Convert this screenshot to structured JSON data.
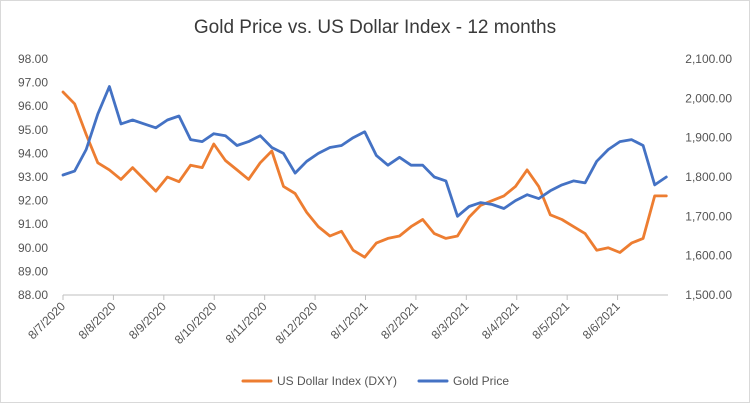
{
  "chart_data": {
    "type": "line",
    "title": "Gold Price vs. US Dollar Index - 12 months",
    "xlabel": "",
    "ylabel": "",
    "grid": false,
    "legend_position": "bottom",
    "x_tick_labels": [
      "8/7/2020",
      "8/8/2020",
      "8/9/2020",
      "8/10/2020",
      "8/11/2020",
      "8/12/2020",
      "8/1/2021",
      "8/2/2021",
      "8/3/2021",
      "8/4/2021",
      "8/5/2021",
      "8/6/2021"
    ],
    "x": [
      "2020-07-08",
      "2020-07-15",
      "2020-07-22",
      "2020-07-29",
      "2020-08-05",
      "2020-08-12",
      "2020-08-19",
      "2020-08-26",
      "2020-09-02",
      "2020-09-09",
      "2020-09-16",
      "2020-09-23",
      "2020-09-30",
      "2020-10-07",
      "2020-10-14",
      "2020-10-21",
      "2020-10-28",
      "2020-11-04",
      "2020-11-11",
      "2020-11-18",
      "2020-11-25",
      "2020-12-02",
      "2020-12-09",
      "2020-12-16",
      "2020-12-23",
      "2020-12-30",
      "2021-01-06",
      "2021-01-13",
      "2021-01-20",
      "2021-01-27",
      "2021-02-03",
      "2021-02-10",
      "2021-02-17",
      "2021-02-24",
      "2021-03-03",
      "2021-03-10",
      "2021-03-17",
      "2021-03-24",
      "2021-03-31",
      "2021-04-07",
      "2021-04-14",
      "2021-04-21",
      "2021-04-28",
      "2021-05-05",
      "2021-05-12",
      "2021-05-19",
      "2021-05-26",
      "2021-06-02",
      "2021-06-09",
      "2021-06-16",
      "2021-06-23",
      "2021-06-30",
      "2021-07-07"
    ],
    "series": [
      {
        "name": "US Dollar Index (DXY)",
        "axis": "left",
        "color": "#ED7D31",
        "values": [
          96.6,
          96.1,
          94.8,
          93.6,
          93.3,
          92.9,
          93.4,
          92.9,
          92.4,
          93.0,
          92.8,
          93.5,
          93.4,
          94.4,
          93.7,
          93.3,
          92.9,
          93.6,
          94.1,
          92.6,
          92.3,
          91.5,
          90.9,
          90.5,
          90.7,
          89.9,
          89.6,
          90.2,
          90.4,
          90.5,
          90.9,
          91.2,
          90.6,
          90.4,
          90.5,
          91.3,
          91.8,
          92.0,
          92.2,
          92.6,
          93.3,
          92.6,
          91.4,
          91.2,
          90.9,
          90.6,
          89.9,
          90.0,
          89.8,
          90.2,
          90.4,
          92.2,
          92.2
        ]
      },
      {
        "name": "Gold Price",
        "axis": "right",
        "color": "#4472C4",
        "values": [
          1805,
          1815,
          1870,
          1960,
          2030,
          1935,
          1945,
          1935,
          1925,
          1945,
          1955,
          1895,
          1890,
          1910,
          1905,
          1880,
          1890,
          1905,
          1875,
          1860,
          1810,
          1840,
          1860,
          1875,
          1880,
          1900,
          1915,
          1855,
          1830,
          1850,
          1830,
          1830,
          1800,
          1790,
          1700,
          1725,
          1735,
          1730,
          1720,
          1740,
          1755,
          1745,
          1765,
          1780,
          1790,
          1785,
          1840,
          1870,
          1890,
          1895,
          1880,
          1780,
          1800
        ]
      }
    ],
    "y_left": {
      "min": 88.0,
      "max": 98.0,
      "ticks": [
        "88.00",
        "89.00",
        "90.00",
        "91.00",
        "92.00",
        "93.00",
        "94.00",
        "95.00",
        "96.00",
        "97.00",
        "98.00"
      ]
    },
    "y_right": {
      "min": 1500,
      "max": 2100,
      "ticks": [
        "1,500.00",
        "1,600.00",
        "1,700.00",
        "1,800.00",
        "1,900.00",
        "2,000.00",
        "2,100.00"
      ]
    }
  }
}
